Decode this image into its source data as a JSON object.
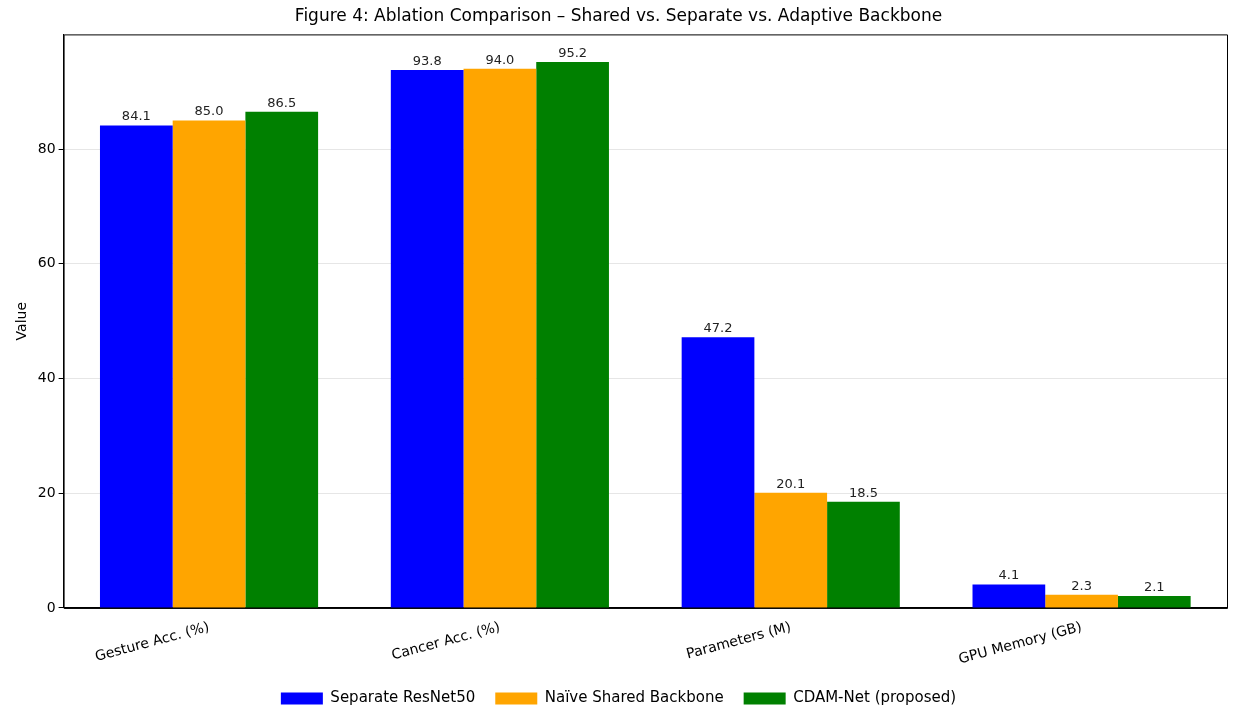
{
  "chart_data": {
    "type": "bar",
    "title": "Figure 4: Ablation Comparison – Shared vs. Separate vs. Adaptive Backbone",
    "ylabel": "Value",
    "categories": [
      "Gesture Acc. (%)",
      "Cancer Acc. (%)",
      "Parameters (M)",
      "GPU Memory (GB)"
    ],
    "series": [
      {
        "name": "Separate ResNet50",
        "color": "#0000ff",
        "values": [
          84.1,
          93.8,
          47.2,
          4.1
        ],
        "value_labels": [
          "84.1",
          "93.8",
          "47.2",
          "4.1"
        ]
      },
      {
        "name": "Naïve Shared Backbone",
        "color": "#ffa500",
        "values": [
          85.0,
          94.0,
          20.1,
          2.3
        ],
        "value_labels": [
          "85.0",
          "94.0",
          "20.1",
          "2.3"
        ]
      },
      {
        "name": "CDAM-Net (proposed)",
        "color": "#008000",
        "values": [
          86.5,
          95.2,
          18.5,
          2.1
        ],
        "value_labels": [
          "86.5",
          "95.2",
          "18.5",
          "2.1"
        ]
      }
    ],
    "ylim": [
      0,
      100
    ],
    "yticks": [
      0,
      20,
      40,
      60,
      80
    ],
    "grid": "y",
    "legend": "bottom"
  }
}
